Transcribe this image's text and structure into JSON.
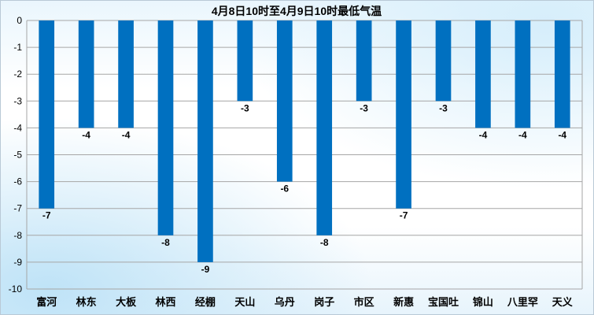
{
  "chart_data": {
    "type": "bar",
    "title": "4月8日10时至4月9日10时最低气温",
    "xlabel": "",
    "ylabel": "",
    "categories": [
      "富河",
      "林东",
      "大板",
      "林西",
      "经棚",
      "天山",
      "乌丹",
      "岗子",
      "市区",
      "新惠",
      "宝国吐",
      "锦山",
      "八里罕",
      "天义"
    ],
    "values": [
      -7,
      -4,
      -4,
      -8,
      -9,
      -3,
      -6,
      -8,
      -3,
      -7,
      -3,
      -4,
      -4,
      -4
    ],
    "ylim": [
      -10,
      0
    ],
    "yticks": [
      0,
      -1,
      -2,
      -3,
      -4,
      -5,
      -6,
      -7,
      -8,
      -9,
      -10
    ],
    "grid": true,
    "legend": "none",
    "bar_color": "#0070c0"
  }
}
